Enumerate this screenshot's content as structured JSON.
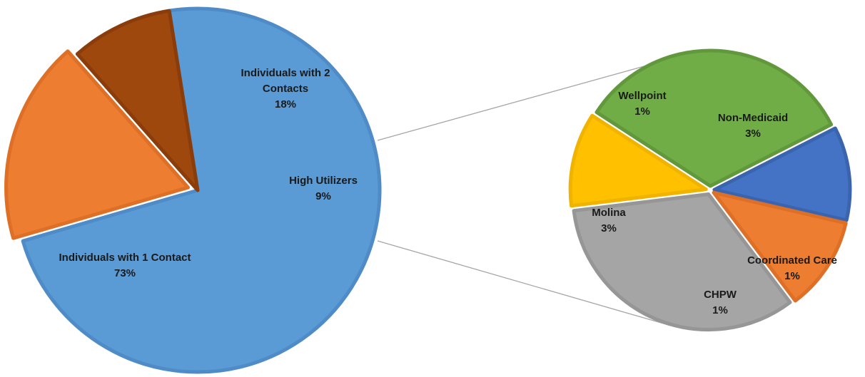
{
  "chart_data": [
    {
      "type": "pie",
      "slices": [
        {
          "label_lines": [
            "Individuals with 1 Contact"
          ],
          "value_label": "73%",
          "value": 73,
          "color": "#5b9bd5",
          "border": "#4f8cc7"
        },
        {
          "label_lines": [
            "Individuals with 2",
            "Contacts"
          ],
          "value_label": "18%",
          "value": 18,
          "color": "#ed7d31",
          "border": "#de6f27"
        },
        {
          "label_lines": [
            "High Utilizers"
          ],
          "value_label": "9%",
          "value": 9,
          "color": "#9e480e",
          "border": "#8a3d0b"
        }
      ]
    },
    {
      "type": "pie",
      "breakdown_of": "High Utilizers",
      "slices": [
        {
          "label_lines": [
            "Non-Medicaid"
          ],
          "value_label": "3%",
          "value": 3,
          "color": "#70ad47",
          "border": "#62983c"
        },
        {
          "label_lines": [
            "Coordinated Care"
          ],
          "value_label": "1%",
          "value": 1,
          "color": "#4472c4",
          "border": "#3a64ad"
        },
        {
          "label_lines": [
            "CHPW"
          ],
          "value_label": "1%",
          "value": 1,
          "color": "#ed7d31",
          "border": "#de6f27"
        },
        {
          "label_lines": [
            "Molina"
          ],
          "value_label": "3%",
          "value": 3,
          "color": "#a5a5a5",
          "border": "#969696"
        },
        {
          "label_lines": [
            "Wellpoint"
          ],
          "value_label": "1%",
          "value": 1,
          "color": "#ffc000",
          "border": "#f0b400"
        }
      ]
    }
  ]
}
